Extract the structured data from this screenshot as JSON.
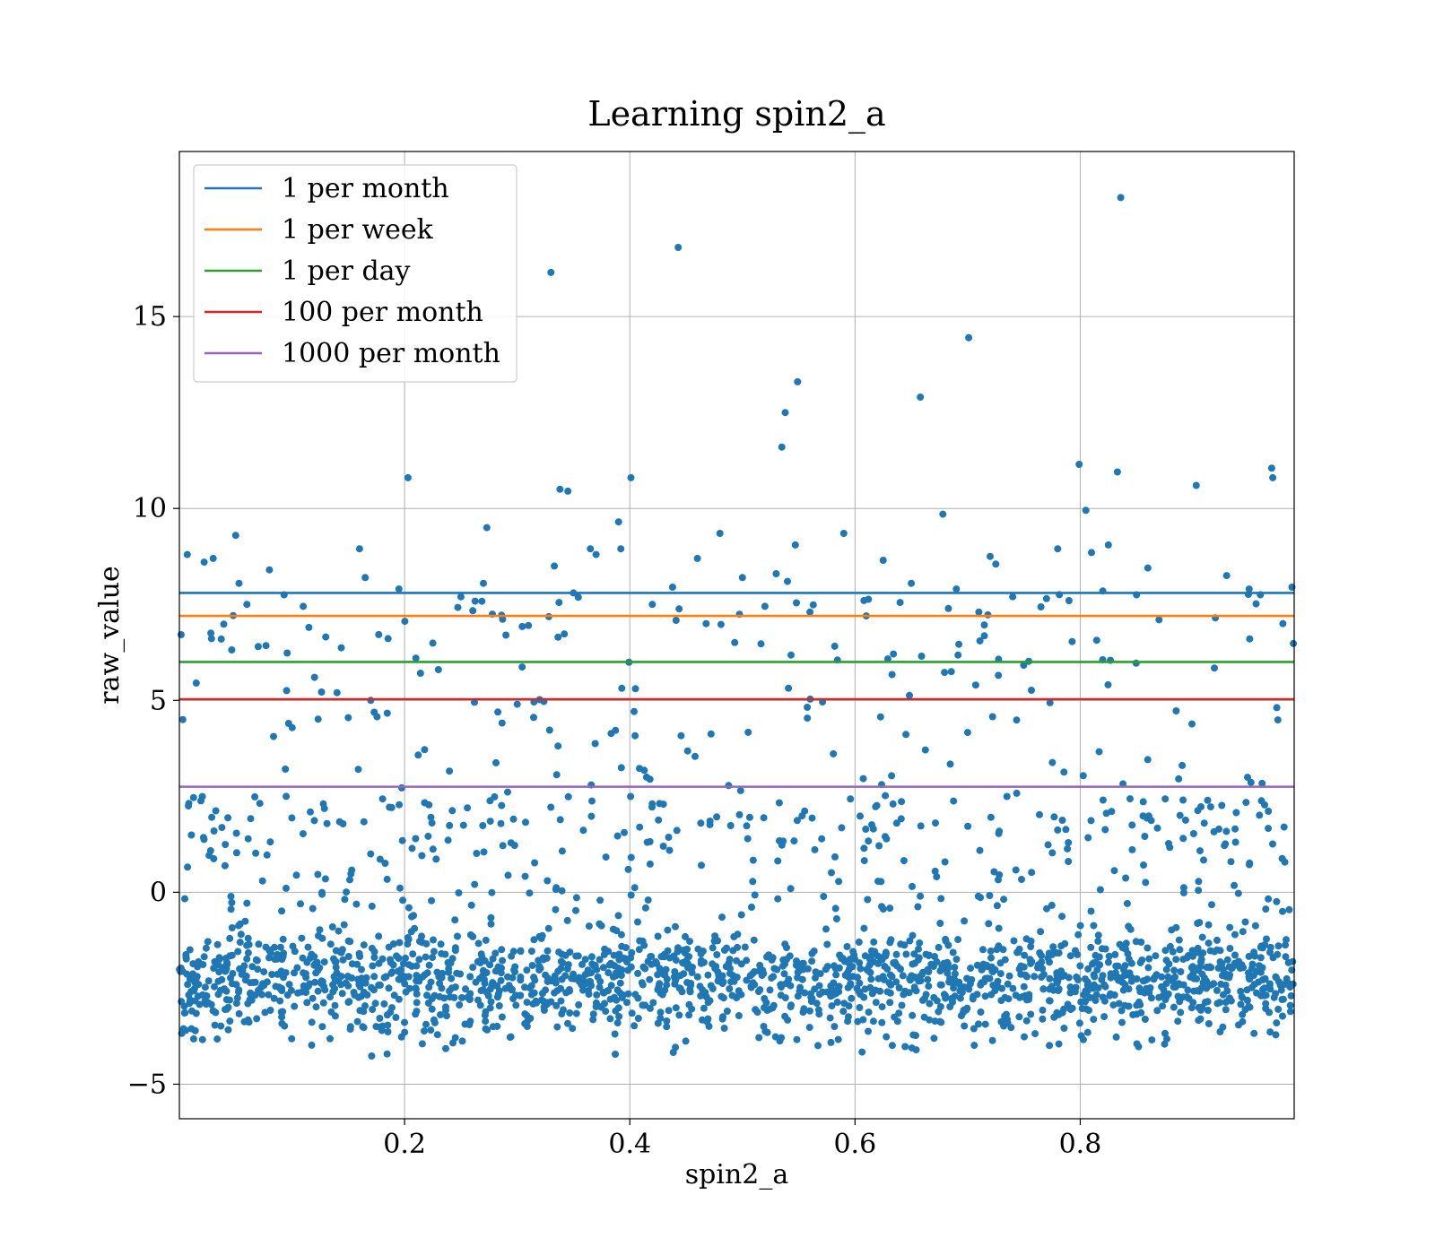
{
  "chart_data": {
    "type": "scatter",
    "title": "Learning spin2_a",
    "xlabel": "spin2_a",
    "ylabel": "raw_value",
    "xlim": [
      0.0,
      0.99
    ],
    "ylim": [
      -5.9,
      19.3
    ],
    "xticks": [
      0.2,
      0.4,
      0.6,
      0.8
    ],
    "yticks": [
      -5,
      0,
      5,
      10,
      15
    ],
    "xtick_labels": [
      "0.2",
      "0.4",
      "0.6",
      "0.8"
    ],
    "ytick_labels": [
      "−5",
      "0",
      "5",
      "10",
      "15"
    ],
    "grid": true,
    "legend_position": "top-left",
    "point_color": "#1f77b4",
    "hlines": [
      {
        "name": "1 per month",
        "y": 7.8,
        "color": "#1f77b4"
      },
      {
        "name": "1 per week",
        "y": 7.2,
        "color": "#ff7f0e"
      },
      {
        "name": "1 per day",
        "y": 6.0,
        "color": "#2ca02c"
      },
      {
        "name": "100 per month",
        "y": 5.03,
        "color": "#d62728"
      },
      {
        "name": "1000 per month",
        "y": 2.75,
        "color": "#9467bd"
      }
    ],
    "highlight_points": [
      {
        "x": 0.003,
        "y": 4.5
      },
      {
        "x": 0.007,
        "y": 8.8
      },
      {
        "x": 0.015,
        "y": 5.45
      },
      {
        "x": 0.022,
        "y": 8.6
      },
      {
        "x": 0.03,
        "y": 8.7
      },
      {
        "x": 0.05,
        "y": 9.3
      },
      {
        "x": 0.053,
        "y": 8.05
      },
      {
        "x": 0.06,
        "y": 7.5
      },
      {
        "x": 0.07,
        "y": 6.4
      },
      {
        "x": 0.08,
        "y": 8.4
      },
      {
        "x": 0.093,
        "y": 7.75
      },
      {
        "x": 0.097,
        "y": 4.4
      },
      {
        "x": 0.11,
        "y": 7.45
      },
      {
        "x": 0.115,
        "y": 6.9
      },
      {
        "x": 0.12,
        "y": 5.6
      },
      {
        "x": 0.13,
        "y": 6.65
      },
      {
        "x": 0.14,
        "y": 5.2
      },
      {
        "x": 0.15,
        "y": 4.55
      },
      {
        "x": 0.16,
        "y": 8.95
      },
      {
        "x": 0.165,
        "y": 8.2
      },
      {
        "x": 0.17,
        "y": 5.0
      },
      {
        "x": 0.195,
        "y": 7.9
      },
      {
        "x": 0.203,
        "y": 10.8
      },
      {
        "x": 0.21,
        "y": 6.1
      },
      {
        "x": 0.23,
        "y": 5.8
      },
      {
        "x": 0.25,
        "y": 7.7
      },
      {
        "x": 0.262,
        "y": 4.95
      },
      {
        "x": 0.27,
        "y": 8.05
      },
      {
        "x": 0.273,
        "y": 9.5
      },
      {
        "x": 0.29,
        "y": 6.7
      },
      {
        "x": 0.3,
        "y": 4.9
      },
      {
        "x": 0.31,
        "y": 6.95
      },
      {
        "x": 0.33,
        "y": 16.15
      },
      {
        "x": 0.333,
        "y": 8.5
      },
      {
        "x": 0.338,
        "y": 10.5
      },
      {
        "x": 0.345,
        "y": 10.45
      },
      {
        "x": 0.35,
        "y": 7.8
      },
      {
        "x": 0.365,
        "y": 8.95
      },
      {
        "x": 0.37,
        "y": 8.8
      },
      {
        "x": 0.39,
        "y": 9.65
      },
      {
        "x": 0.392,
        "y": 8.95
      },
      {
        "x": 0.401,
        "y": 10.8
      },
      {
        "x": 0.42,
        "y": 7.5
      },
      {
        "x": 0.438,
        "y": 7.95
      },
      {
        "x": 0.443,
        "y": 16.8
      },
      {
        "x": 0.46,
        "y": 8.7
      },
      {
        "x": 0.48,
        "y": 9.35
      },
      {
        "x": 0.5,
        "y": 8.2
      },
      {
        "x": 0.52,
        "y": 7.45
      },
      {
        "x": 0.53,
        "y": 8.3
      },
      {
        "x": 0.535,
        "y": 11.6
      },
      {
        "x": 0.538,
        "y": 12.5
      },
      {
        "x": 0.54,
        "y": 8.1
      },
      {
        "x": 0.547,
        "y": 9.05
      },
      {
        "x": 0.549,
        "y": 13.3
      },
      {
        "x": 0.56,
        "y": 7.3
      },
      {
        "x": 0.59,
        "y": 9.35
      },
      {
        "x": 0.61,
        "y": 7.2
      },
      {
        "x": 0.625,
        "y": 8.65
      },
      {
        "x": 0.64,
        "y": 7.55
      },
      {
        "x": 0.65,
        "y": 8.05
      },
      {
        "x": 0.658,
        "y": 12.9
      },
      {
        "x": 0.678,
        "y": 9.85
      },
      {
        "x": 0.69,
        "y": 7.9
      },
      {
        "x": 0.701,
        "y": 14.45
      },
      {
        "x": 0.71,
        "y": 7.3
      },
      {
        "x": 0.72,
        "y": 8.75
      },
      {
        "x": 0.725,
        "y": 8.55
      },
      {
        "x": 0.74,
        "y": 7.7
      },
      {
        "x": 0.77,
        "y": 7.65
      },
      {
        "x": 0.78,
        "y": 8.95
      },
      {
        "x": 0.79,
        "y": 7.6
      },
      {
        "x": 0.799,
        "y": 11.15
      },
      {
        "x": 0.805,
        "y": 9.95
      },
      {
        "x": 0.81,
        "y": 8.85
      },
      {
        "x": 0.82,
        "y": 7.85
      },
      {
        "x": 0.825,
        "y": 9.05
      },
      {
        "x": 0.833,
        "y": 10.95
      },
      {
        "x": 0.836,
        "y": 18.1
      },
      {
        "x": 0.85,
        "y": 7.75
      },
      {
        "x": 0.86,
        "y": 8.45
      },
      {
        "x": 0.87,
        "y": 7.1
      },
      {
        "x": 0.903,
        "y": 10.6
      },
      {
        "x": 0.92,
        "y": 7.15
      },
      {
        "x": 0.93,
        "y": 8.25
      },
      {
        "x": 0.95,
        "y": 7.9
      },
      {
        "x": 0.96,
        "y": 7.75
      },
      {
        "x": 0.97,
        "y": 11.05
      },
      {
        "x": 0.971,
        "y": 10.8
      },
      {
        "x": 0.98,
        "y": 7.0
      },
      {
        "x": 0.988,
        "y": 7.95
      }
    ],
    "bulk_cloud": {
      "points_count": 2200,
      "x_range": [
        0.0,
        0.99
      ],
      "y_core_range": [
        -4.8,
        1.0
      ],
      "y_core_center": -2.3,
      "y_sparse_range": [
        1.0,
        7.8
      ]
    }
  }
}
